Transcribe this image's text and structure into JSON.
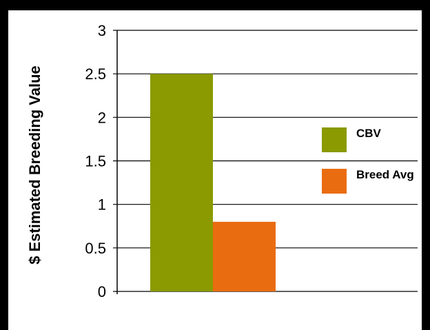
{
  "chart_data": {
    "type": "bar",
    "title": "",
    "xlabel": "",
    "ylabel": "$ Estimated Breeding Value",
    "ylim": [
      0,
      3
    ],
    "yticks": [
      {
        "value": 0,
        "label": "0"
      },
      {
        "value": 0.5,
        "label": "0.5"
      },
      {
        "value": 1,
        "label": "1"
      },
      {
        "value": 1.5,
        "label": "1.5"
      },
      {
        "value": 2,
        "label": "2"
      },
      {
        "value": 2.5,
        "label": "2.5"
      },
      {
        "value": 3,
        "label": "3"
      }
    ],
    "categories": [
      ""
    ],
    "series": [
      {
        "name": "CBV",
        "values": [
          2.5
        ],
        "color": "#8a9a00"
      },
      {
        "name": "Breed Avg",
        "values": [
          0.8
        ],
        "color": "#ea6c10"
      }
    ],
    "grid": true,
    "legend_position": "right"
  }
}
